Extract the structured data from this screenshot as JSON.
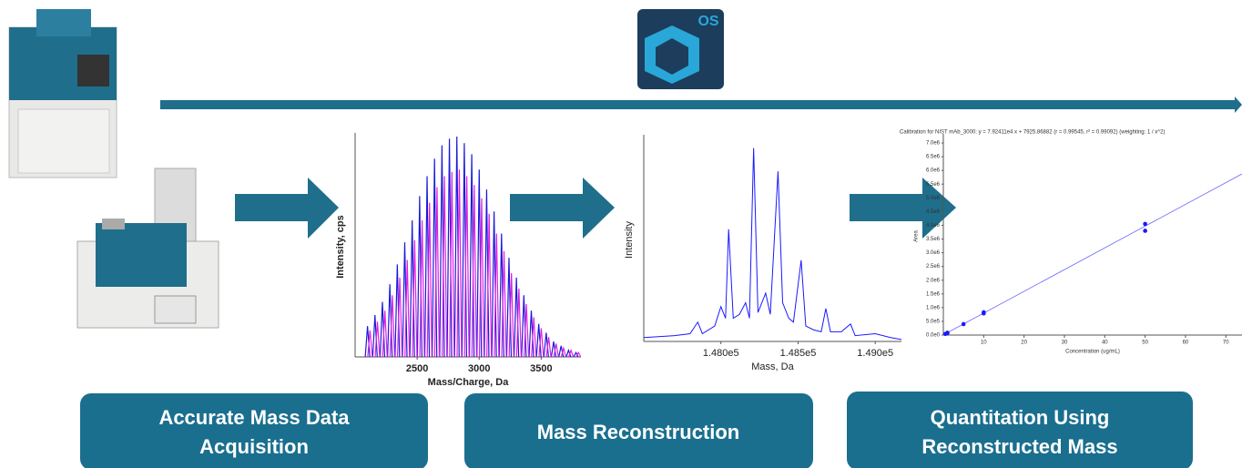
{
  "logo": {
    "text": "OS"
  },
  "steps": [
    {
      "lines": [
        "Accurate Mass Data",
        "Acquisition"
      ]
    },
    {
      "lines": [
        "Mass Reconstruction"
      ]
    },
    {
      "lines": [
        "Quantitation Using",
        "Reconstructed Mass"
      ]
    }
  ],
  "charts": [
    {
      "type": "stick",
      "xlabel": "Mass/Charge, Da",
      "ylabel": "Intensity, cps",
      "xlim": [
        2000,
        3820
      ],
      "xticks": [
        2500,
        3000,
        3500
      ],
      "ylim": [
        0,
        100
      ],
      "series": [
        {
          "color": "#1a1adb",
          "x": [
            2100,
            2160,
            2220,
            2280,
            2340,
            2400,
            2460,
            2520,
            2580,
            2640,
            2700,
            2760,
            2820,
            2880,
            2940,
            3000,
            3060,
            3120,
            3180,
            3240,
            3300,
            3360,
            3420,
            3480,
            3540,
            3600,
            3660,
            3720,
            3780
          ],
          "values": [
            14,
            19,
            25,
            33,
            42,
            52,
            62,
            73,
            82,
            90,
            96,
            99,
            100,
            97,
            92,
            85,
            76,
            66,
            56,
            45,
            36,
            28,
            21,
            15,
            11,
            7,
            5,
            3,
            2
          ]
        },
        {
          "color": "#e020e0",
          "x": [
            2120,
            2180,
            2240,
            2300,
            2360,
            2420,
            2480,
            2540,
            2600,
            2660,
            2720,
            2780,
            2840,
            2900,
            2960,
            3020,
            3080,
            3140,
            3200,
            3260,
            3320,
            3380,
            3440,
            3500,
            3560,
            3620,
            3680,
            3740,
            3800
          ],
          "values": [
            12,
            16,
            21,
            28,
            36,
            44,
            53,
            62,
            70,
            77,
            82,
            84,
            85,
            82,
            78,
            72,
            65,
            56,
            48,
            38,
            31,
            24,
            18,
            13,
            9,
            6,
            4,
            3,
            2
          ]
        }
      ]
    },
    {
      "type": "line",
      "xlabel": "Mass, Da",
      "ylabel": "Intensity",
      "xlim": [
        147500,
        149170
      ],
      "ylim": [
        0,
        105
      ],
      "xticks": [
        {
          "value": 148000,
          "label": "1.480e5"
        },
        {
          "value": 148500,
          "label": "1.485e5"
        },
        {
          "value": 149000,
          "label": "1.490e5"
        }
      ],
      "series": [
        {
          "color": "#1a1aff",
          "x": [
            147500,
            147700,
            147800,
            147850,
            147880,
            147960,
            148000,
            148030,
            148050,
            148080,
            148120,
            148160,
            148185,
            148212,
            148240,
            148290,
            148320,
            148370,
            148400,
            148440,
            148470,
            148520,
            148550,
            148600,
            148650,
            148680,
            148710,
            148780,
            148840,
            148870,
            149000,
            149100,
            149170
          ],
          "values": [
            2,
            3,
            4,
            10,
            4,
            8,
            18,
            12,
            58,
            12,
            14,
            20,
            12,
            100,
            15,
            25,
            14,
            88,
            20,
            12,
            10,
            42,
            8,
            6,
            5,
            17,
            5,
            5,
            9,
            3,
            4,
            2,
            1
          ]
        }
      ]
    },
    {
      "type": "scatter",
      "title": "Calibration for NIST mAb_3000: y = 7.92411e4 x + 7925.86882 (r = 0.99545, r² = 0.99092) (weighting: 1 / x^2)",
      "xlabel": "Concentration (ug/mL)",
      "ylabel": "Area",
      "xlim": [
        0,
        74
      ],
      "xticks": [
        10,
        20,
        30,
        40,
        50,
        60,
        70
      ],
      "ylim": [
        0,
        7200000
      ],
      "yticks": [
        {
          "value": 0,
          "label": "0.0e0"
        },
        {
          "value": 500000,
          "label": "5.0e5"
        },
        {
          "value": 1000000,
          "label": "1.0e6"
        },
        {
          "value": 1500000,
          "label": "1.5e6"
        },
        {
          "value": 2000000,
          "label": "2.0e6"
        },
        {
          "value": 2500000,
          "label": "2.5e6"
        },
        {
          "value": 3000000,
          "label": "3.0e6"
        },
        {
          "value": 3500000,
          "label": "3.5e6"
        },
        {
          "value": 4000000,
          "label": "4.0e6"
        },
        {
          "value": 4500000,
          "label": "4.5e6"
        },
        {
          "value": 5000000,
          "label": "5.0e6"
        },
        {
          "value": 5500000,
          "label": "5.5e6"
        },
        {
          "value": 6000000,
          "label": "6.0e6"
        },
        {
          "value": 6500000,
          "label": "6.5e6"
        },
        {
          "value": 7000000,
          "label": "7.0e6"
        }
      ],
      "fit": {
        "slope": 79241.1,
        "intercept": 7925.86882,
        "color": "#6a6aff"
      },
      "series": [
        {
          "color": "#1a1aff",
          "x": [
            0.5,
            1,
            1,
            5,
            10,
            10,
            50,
            50
          ],
          "values": [
            40000,
            70000,
            85000,
            400000,
            790000,
            830000,
            3800000,
            4050000
          ]
        }
      ]
    }
  ]
}
